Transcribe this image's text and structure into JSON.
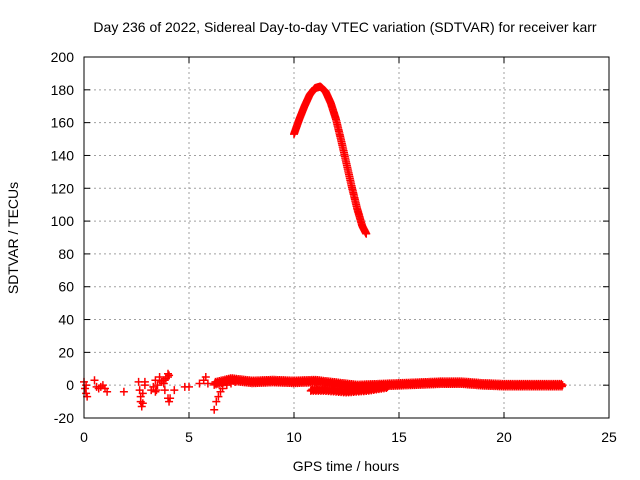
{
  "chart_data": {
    "type": "scatter",
    "title": "Day 236 of 2022, Sidereal Day-to-day VTEC variation (SDTVAR) for receiver karr",
    "xlabel": "GPS time / hours",
    "ylabel": "SDTVAR / TECUs",
    "xlim": [
      0,
      25
    ],
    "ylim": [
      -20,
      200
    ],
    "x_ticks": [
      "0",
      "5",
      "10",
      "15",
      "20",
      "25"
    ],
    "y_ticks": [
      "-20",
      "0",
      "20",
      "40",
      "60",
      "80",
      "100",
      "120",
      "140",
      "160",
      "180",
      "200"
    ],
    "grid": true,
    "marker": "plus",
    "colors": {
      "points": "#ff0000",
      "grid": "#a0a0a0",
      "axes": "#000000"
    },
    "series": [
      {
        "points": [
          [
            0.0,
            2
          ],
          [
            0.05,
            -2
          ],
          [
            0.1,
            -5
          ],
          [
            0.1,
            0
          ],
          [
            0.15,
            -7
          ],
          [
            0.5,
            3
          ],
          [
            0.6,
            -1
          ],
          [
            0.7,
            -2
          ],
          [
            0.8,
            -1
          ],
          [
            0.9,
            0
          ],
          [
            1.0,
            -2
          ],
          [
            1.1,
            -4
          ],
          [
            1.9,
            -4
          ],
          [
            2.6,
            2
          ],
          [
            2.65,
            -3
          ],
          [
            2.7,
            -7
          ],
          [
            2.7,
            -10
          ],
          [
            2.75,
            -13
          ],
          [
            2.8,
            -11
          ],
          [
            2.8,
            -5
          ],
          [
            2.9,
            0
          ],
          [
            2.9,
            2
          ],
          [
            3.3,
            -1
          ],
          [
            3.4,
            3
          ],
          [
            3.4,
            -4
          ],
          [
            3.5,
            0
          ],
          [
            3.6,
            3
          ],
          [
            3.6,
            5
          ],
          [
            3.7,
            2
          ],
          [
            3.8,
            1
          ],
          [
            3.8,
            3
          ],
          [
            3.9,
            4
          ],
          [
            4.0,
            5
          ],
          [
            4.0,
            7
          ],
          [
            4.05,
            6
          ],
          [
            3.2,
            -3
          ],
          [
            3.45,
            -3
          ],
          [
            3.85,
            -3
          ],
          [
            4.0,
            -8
          ],
          [
            4.05,
            -10
          ],
          [
            4.1,
            -8
          ],
          [
            4.3,
            -3
          ],
          [
            4.8,
            -1
          ],
          [
            5.0,
            -1
          ],
          [
            5.5,
            1
          ],
          [
            5.7,
            3
          ],
          [
            5.8,
            5
          ],
          [
            5.9,
            1
          ],
          [
            6.2,
            -15
          ],
          [
            6.3,
            -10
          ],
          [
            6.4,
            -7
          ],
          [
            6.5,
            -4
          ],
          [
            6.6,
            -2
          ],
          [
            6.8,
            0
          ],
          [
            7.0,
            1
          ],
          [
            7.2,
            2
          ]
        ],
        "dense_band": {
          "x": [
            6.2,
            7.0,
            8.0,
            9.0,
            10.0,
            11.0,
            12.0,
            13.0,
            14.0,
            15.0,
            16.0,
            17.0,
            18.0,
            19.0,
            20.0,
            21.0,
            22.0,
            22.8
          ],
          "y": [
            1.0,
            3.5,
            2.0,
            2.5,
            2.0,
            2.5,
            1.0,
            -0.5,
            0.0,
            0.5,
            1.0,
            1.5,
            1.5,
            0.5,
            0.0,
            0.0,
            0.0,
            0.0
          ]
        },
        "lower_band": {
          "x": [
            10.8,
            11.5,
            12.0,
            12.5,
            13.0,
            13.5,
            14.0,
            14.5
          ],
          "y": [
            -3,
            -3,
            -3.5,
            -4,
            -3.5,
            -3,
            -2,
            -1
          ]
        },
        "arc": {
          "x": [
            10.0,
            10.25,
            10.5,
            10.75,
            11.0,
            11.25,
            11.5,
            11.75,
            12.0,
            12.25,
            12.5,
            12.75,
            13.0,
            13.25,
            13.45
          ],
          "y": [
            153,
            162,
            170,
            177,
            181,
            182,
            179,
            172,
            162,
            149,
            135,
            121,
            108,
            97,
            92
          ]
        }
      }
    ]
  }
}
